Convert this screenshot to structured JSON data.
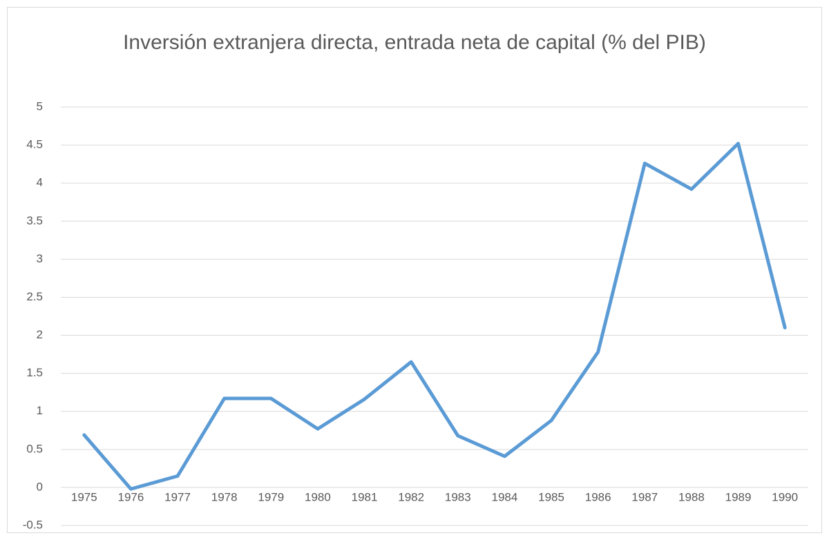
{
  "chart_data": {
    "type": "line",
    "title": "Inversión extranjera directa, entrada neta de capital (% del PIB)",
    "categories": [
      "1975",
      "1976",
      "1977",
      "1978",
      "1979",
      "1980",
      "1981",
      "1982",
      "1983",
      "1984",
      "1985",
      "1986",
      "1987",
      "1988",
      "1989",
      "1990"
    ],
    "values": [
      0.69,
      -0.02,
      0.15,
      1.17,
      1.17,
      0.77,
      1.16,
      1.65,
      0.68,
      0.41,
      0.88,
      1.78,
      4.26,
      3.92,
      4.52,
      2.1
    ],
    "color": "#5b9bd5",
    "ylim": [
      -0.5,
      5
    ],
    "yticks": [
      -0.5,
      0,
      0.5,
      1,
      1.5,
      2,
      2.5,
      3,
      3.5,
      4,
      4.5,
      5
    ],
    "grid": true
  }
}
